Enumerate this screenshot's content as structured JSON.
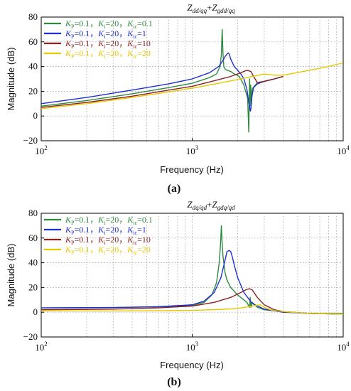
{
  "charts": [
    {
      "id": "a",
      "subfigure_label": "(a)",
      "title_main": "Z",
      "title_sub1": "dd/qq",
      "title_plus": "+",
      "title_main2": "Z",
      "title_sub2": "gdd/qq"
    },
    {
      "id": "b",
      "subfigure_label": "(b)",
      "title_main": "Z",
      "title_sub1": "dq/qd",
      "title_plus": "+",
      "title_main2": "Z",
      "title_sub2": "gdq/qd"
    }
  ],
  "legend_entries": [
    {
      "kp_label": "K",
      "kp_sub": "P",
      "kp_val": "=0.1，",
      "ki_label": "K",
      "ki_sub": "i",
      "ki_val": "=20，",
      "kic_label": "K",
      "kic_sub": "ic",
      "kic_val": "=0.1",
      "color": "#2e8b3e"
    },
    {
      "kp_label": "K",
      "kp_sub": "P",
      "kp_val": "=0.1，",
      "ki_label": "K",
      "ki_sub": "i",
      "ki_val": "=20，",
      "kic_label": "K",
      "kic_sub": "ic",
      "kic_val": "=1",
      "color": "#1f2fd0"
    },
    {
      "kp_label": "K",
      "kp_sub": "P",
      "kp_val": "=0.1，",
      "ki_label": "K",
      "ki_sub": "i",
      "ki_val": "=20，",
      "kic_label": "K",
      "kic_sub": "ic",
      "kic_val": "=10",
      "color": "#8b2323"
    },
    {
      "kp_label": "K",
      "kp_sub": "P",
      "kp_val": "=0.1，",
      "ki_label": "K",
      "ki_sub": "i",
      "ki_val": "=20，",
      "kic_label": "K",
      "kic_sub": "ic",
      "kic_val": "=20",
      "color": "#e6c800"
    }
  ],
  "chart_data": [
    {
      "type": "line",
      "xlabel": "Frequency  (Hz)",
      "ylabel": "Magnitude (dB)",
      "x_scale": "log",
      "xlim": [
        100,
        10000
      ],
      "ylim": [
        -20,
        80
      ],
      "x_ticks": [
        {
          "v": 100,
          "base": "10",
          "exp": "2"
        },
        {
          "v": 1000,
          "base": "10",
          "exp": "3"
        },
        {
          "v": 10000,
          "base": "10",
          "exp": "4"
        }
      ],
      "y_ticks": [
        -20,
        0,
        20,
        40,
        60,
        80
      ],
      "grid": true,
      "legend_position": "top-left",
      "series": [
        {
          "color": "#2e8b3e",
          "x": [
            100,
            200,
            400,
            700,
            1000,
            1300,
            1450,
            1530,
            1560,
            1580,
            1600,
            1620,
            1650,
            1700,
            1800,
            1900,
            2050,
            2200,
            2330,
            2370,
            2400,
            2420,
            2440,
            2470,
            2500,
            2700,
            3000,
            3500,
            4000
          ],
          "y": [
            8,
            12.5,
            18,
            23,
            26.5,
            31,
            34,
            40,
            50,
            70,
            50,
            40,
            38,
            37,
            36,
            34,
            32,
            25,
            14,
            -13,
            30,
            8,
            25,
            10,
            22,
            27,
            28,
            30,
            32
          ]
        },
        {
          "color": "#1f2fd0",
          "x": [
            100,
            200,
            400,
            700,
            1000,
            1300,
            1500,
            1600,
            1650,
            1700,
            1730,
            1760,
            1800,
            1900,
            2000,
            2100,
            2200,
            2300,
            2380,
            2430,
            2450,
            2480,
            2550,
            2700,
            3000,
            3500,
            4000
          ],
          "y": [
            10,
            15,
            21,
            26,
            30,
            35,
            40,
            45,
            48,
            50,
            51,
            50,
            46,
            40,
            37,
            34,
            30,
            22,
            10,
            4,
            6,
            15,
            23,
            26,
            28,
            30,
            32
          ]
        },
        {
          "color": "#8b2323",
          "x": [
            100,
            200,
            400,
            700,
            1000,
            1400,
            1800,
            2100,
            2300,
            2450,
            2550,
            2700,
            3000,
            3500,
            4000
          ],
          "y": [
            7,
            11,
            16,
            21,
            24,
            28.5,
            32,
            35,
            37,
            36,
            32,
            27,
            28,
            30,
            32
          ]
        },
        {
          "color": "#e6c800",
          "x": [
            100,
            200,
            400,
            700,
            1000,
            1500,
            2000,
            2500,
            3000,
            3500,
            4000,
            6000,
            8000,
            10000
          ],
          "y": [
            6,
            10,
            15,
            19.5,
            22.5,
            26.5,
            29.5,
            32,
            34,
            33,
            33,
            37,
            40,
            43
          ]
        }
      ]
    },
    {
      "type": "line",
      "xlabel": "Frequency  (Hz)",
      "ylabel": "Magnitude (dB)",
      "x_scale": "log",
      "xlim": [
        100,
        10000
      ],
      "ylim": [
        -20,
        80
      ],
      "x_ticks": [
        {
          "v": 100,
          "base": "10",
          "exp": "2"
        },
        {
          "v": 1000,
          "base": "10",
          "exp": "3"
        },
        {
          "v": 10000,
          "base": "10",
          "exp": "4"
        }
      ],
      "y_ticks": [
        -20,
        0,
        20,
        40,
        60,
        80
      ],
      "grid": true,
      "legend_position": "top-left",
      "series": [
        {
          "color": "#2e8b3e",
          "x": [
            100,
            300,
            600,
            1000,
            1200,
            1350,
            1450,
            1510,
            1540,
            1560,
            1580,
            1600,
            1620,
            1650,
            1700,
            1800,
            2000,
            2300,
            2400,
            2420,
            2450,
            2500,
            2700,
            3000,
            4000,
            6000,
            10000
          ],
          "y": [
            3.5,
            3.8,
            4.3,
            5.5,
            8,
            14,
            24,
            40,
            55,
            70,
            55,
            45,
            40,
            32,
            26,
            20,
            14,
            8,
            4,
            12,
            4,
            8,
            4,
            2,
            0.5,
            -1,
            -1
          ]
        },
        {
          "color": "#1f2fd0",
          "x": [
            100,
            300,
            600,
            1000,
            1200,
            1400,
            1550,
            1650,
            1700,
            1760,
            1800,
            1850,
            1900,
            2000,
            2200,
            2500,
            3000,
            4000,
            6000,
            10000
          ],
          "y": [
            3.5,
            3.8,
            4.5,
            6,
            9,
            16,
            28,
            42,
            49,
            50,
            49,
            44,
            38,
            28,
            16,
            7,
            2.5,
            0,
            -1,
            -1.5
          ]
        },
        {
          "color": "#8b2323",
          "x": [
            100,
            300,
            600,
            1000,
            1400,
            1800,
            2100,
            2300,
            2400,
            2500,
            2700,
            3000,
            3500,
            4000,
            6000,
            10000
          ],
          "y": [
            2,
            2.5,
            3.5,
            5,
            8,
            12,
            16,
            18.5,
            19,
            18,
            12,
            6,
            2,
            0.5,
            -1,
            -1.5
          ]
        },
        {
          "color": "#e6c800",
          "x": [
            100,
            300,
            600,
            1000,
            1500,
            2000,
            2500,
            2800,
            3000,
            3300,
            3700,
            4500,
            6000,
            10000
          ],
          "y": [
            1,
            1,
            1.2,
            1.5,
            2.2,
            3,
            5,
            6,
            4,
            2,
            1,
            0,
            -1,
            -1.5
          ]
        }
      ]
    }
  ]
}
